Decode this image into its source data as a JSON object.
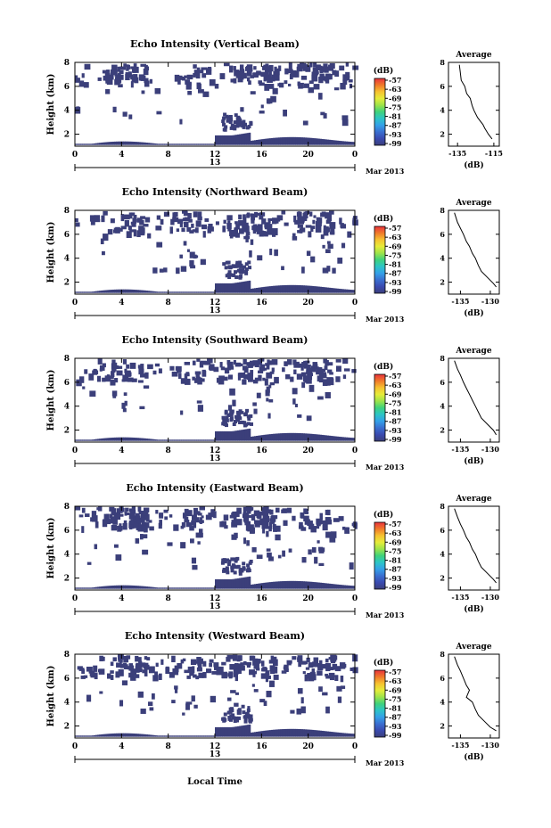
{
  "page_title": "",
  "xlabel_bottom": "Local Time",
  "chart_data": [
    {
      "type": "heatmap",
      "title": "Echo Intensity (Vertical Beam)",
      "ylabel": "Height (km)",
      "yticks": [
        "2",
        "4",
        "6",
        "8"
      ],
      "ylim": [
        1,
        8
      ],
      "xticks": [
        "0",
        "4",
        "8",
        "12",
        "16",
        "20",
        "0"
      ],
      "xlim": [
        0,
        24
      ],
      "day_label": "13",
      "date_label": "Mar 2013",
      "colorbar": {
        "unit": "(dB)",
        "ticks": [
          "-57",
          "-63",
          "-69",
          "-75",
          "-81",
          "-87",
          "-93",
          "-99"
        ]
      },
      "profile": {
        "title": "Average",
        "xlabel": "(dB)",
        "xticks": [
          "-135",
          "-115"
        ],
        "yticks": [
          "2",
          "4",
          "6",
          "8"
        ],
        "xlim": [
          -140,
          -112
        ],
        "ylim": [
          1,
          8
        ],
        "x": [
          -134,
          -133.5,
          -133,
          -131,
          -130,
          -128,
          -127,
          -126,
          -124,
          -121,
          -120,
          -118,
          -116
        ],
        "y": [
          7.8,
          7.2,
          6.5,
          6.0,
          5.4,
          5.0,
          4.4,
          4.0,
          3.4,
          2.8,
          2.5,
          2.0,
          1.6
        ]
      }
    },
    {
      "type": "heatmap",
      "title": "Echo Intensity (Northward Beam)",
      "ylabel": "Height (km)",
      "yticks": [
        "2",
        "4",
        "6",
        "8"
      ],
      "ylim": [
        1,
        8
      ],
      "xticks": [
        "0",
        "4",
        "8",
        "12",
        "16",
        "20",
        "0"
      ],
      "xlim": [
        0,
        24
      ],
      "day_label": "13",
      "date_label": "Mar 2013",
      "colorbar": {
        "unit": "(dB)",
        "ticks": [
          "-57",
          "-63",
          "-69",
          "-75",
          "-81",
          "-87",
          "-93",
          "-99"
        ]
      },
      "profile": {
        "title": "Average",
        "xlabel": "(dB)",
        "xticks": [
          "-135",
          "-130"
        ],
        "yticks": [
          "2",
          "4",
          "6",
          "8"
        ],
        "xlim": [
          -137,
          -128.5
        ],
        "ylim": [
          1,
          8
        ],
        "x": [
          -136,
          -135.5,
          -135,
          -134.5,
          -134,
          -133.5,
          -133,
          -132.5,
          -132,
          -131.5,
          -130.5,
          -129.5,
          -129
        ],
        "y": [
          7.8,
          7.0,
          6.5,
          6.0,
          5.4,
          5.0,
          4.4,
          4.0,
          3.4,
          2.9,
          2.4,
          1.9,
          1.6
        ]
      }
    },
    {
      "type": "heatmap",
      "title": "Echo Intensity (Southward Beam)",
      "ylabel": "Height (km)",
      "yticks": [
        "2",
        "4",
        "6",
        "8"
      ],
      "ylim": [
        1,
        8
      ],
      "xticks": [
        "0",
        "4",
        "8",
        "12",
        "16",
        "20",
        "0"
      ],
      "xlim": [
        0,
        24
      ],
      "day_label": "13",
      "date_label": "Mar 2013",
      "colorbar": {
        "unit": "(dB)",
        "ticks": [
          "-57",
          "-63",
          "-69",
          "-75",
          "-81",
          "-87",
          "-93",
          "-99"
        ]
      },
      "profile": {
        "title": "Average",
        "xlabel": "(dB)",
        "xticks": [
          "-135",
          "-130"
        ],
        "yticks": [
          "2",
          "4",
          "6",
          "8"
        ],
        "xlim": [
          -137,
          -128.5
        ],
        "ylim": [
          1,
          8
        ],
        "x": [
          -136,
          -135.5,
          -135,
          -134.5,
          -134,
          -133.5,
          -133,
          -132.5,
          -132,
          -131.5,
          -130.5,
          -129.5,
          -129
        ],
        "y": [
          7.8,
          7.1,
          6.6,
          6.0,
          5.5,
          5.0,
          4.5,
          4.0,
          3.5,
          3.0,
          2.5,
          2.0,
          1.6
        ]
      }
    },
    {
      "type": "heatmap",
      "title": "Echo Intensity (Eastward Beam)",
      "ylabel": "Height (km)",
      "yticks": [
        "2",
        "4",
        "6",
        "8"
      ],
      "ylim": [
        1,
        8
      ],
      "xticks": [
        "0",
        "4",
        "8",
        "12",
        "16",
        "20",
        "0"
      ],
      "xlim": [
        0,
        24
      ],
      "day_label": "13",
      "date_label": "Mar 2013",
      "colorbar": {
        "unit": "(dB)",
        "ticks": [
          "-57",
          "-63",
          "-69",
          "-75",
          "-81",
          "-87",
          "-93",
          "-99"
        ]
      },
      "profile": {
        "title": "Average",
        "xlabel": "(dB)",
        "xticks": [
          "-135",
          "-130"
        ],
        "yticks": [
          "2",
          "4",
          "6",
          "8"
        ],
        "xlim": [
          -137,
          -128.5
        ],
        "ylim": [
          1,
          8
        ],
        "x": [
          -136,
          -135.5,
          -135,
          -134.5,
          -134,
          -133.5,
          -133,
          -132.5,
          -132,
          -131.5,
          -130.5,
          -129.5,
          -129
        ],
        "y": [
          7.8,
          7.1,
          6.5,
          6.0,
          5.4,
          5.0,
          4.4,
          4.0,
          3.4,
          2.9,
          2.4,
          1.9,
          1.6
        ]
      }
    },
    {
      "type": "heatmap",
      "title": "Echo Intensity (Westward Beam)",
      "ylabel": "Height (km)",
      "yticks": [
        "2",
        "4",
        "6",
        "8"
      ],
      "ylim": [
        1,
        8
      ],
      "xticks": [
        "0",
        "4",
        "8",
        "12",
        "16",
        "20",
        "0"
      ],
      "xlim": [
        0,
        24
      ],
      "day_label": "13",
      "date_label": "Mar 2013",
      "colorbar": {
        "unit": "(dB)",
        "ticks": [
          "-57",
          "-63",
          "-69",
          "-75",
          "-81",
          "-87",
          "-93",
          "-99"
        ]
      },
      "profile": {
        "title": "Average",
        "xlabel": "(dB)",
        "xticks": [
          "-135",
          "-130"
        ],
        "yticks": [
          "2",
          "4",
          "6",
          "8"
        ],
        "xlim": [
          -137,
          -128.5
        ],
        "ylim": [
          1,
          8
        ],
        "x": [
          -136,
          -135.5,
          -135,
          -134.5,
          -134,
          -133.5,
          -134,
          -133,
          -132.5,
          -132,
          -131,
          -130,
          -129
        ],
        "y": [
          7.8,
          7.1,
          6.6,
          6.0,
          5.4,
          5.0,
          4.4,
          4.0,
          3.4,
          2.9,
          2.4,
          1.9,
          1.6
        ]
      }
    }
  ],
  "colors": {
    "echo_fill": "#3b3f7a",
    "colorbar_gradient": [
      "#e8323c",
      "#f07a2a",
      "#f6c230",
      "#e6ec3a",
      "#9de44a",
      "#3fd27c",
      "#2cc5c6",
      "#34a0e8",
      "#3a6fd0",
      "#3a4ab0",
      "#3b3f7a"
    ]
  }
}
